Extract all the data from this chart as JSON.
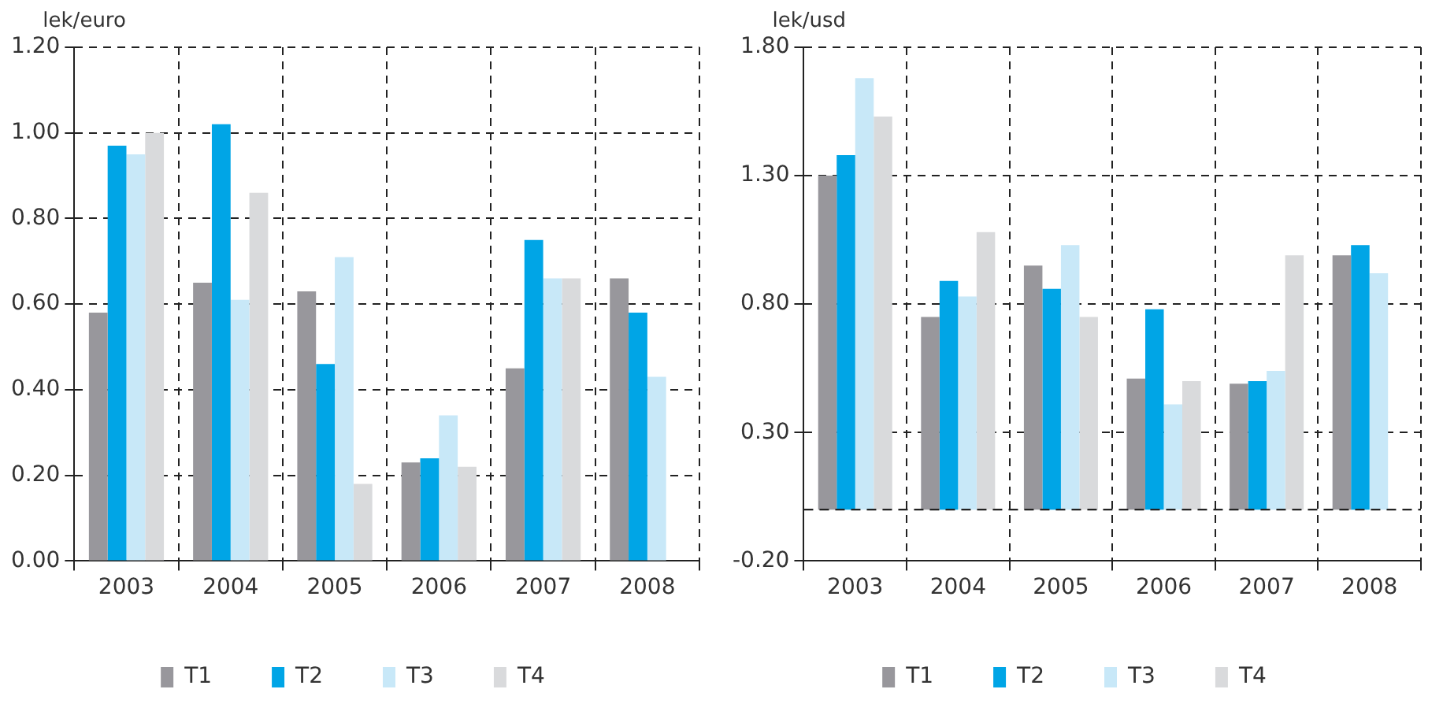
{
  "chart_data": [
    {
      "type": "bar",
      "ylabel": "lek/euro",
      "categories": [
        "2003",
        "2004",
        "2005",
        "2006",
        "2007",
        "2008"
      ],
      "series": [
        {
          "name": "T1",
          "color": "#98979c",
          "values": [
            0.58,
            0.65,
            0.63,
            0.23,
            0.45,
            0.66
          ]
        },
        {
          "name": "T2",
          "color": "#00a5e6",
          "values": [
            0.97,
            1.02,
            0.46,
            0.24,
            0.75,
            0.58
          ]
        },
        {
          "name": "T3",
          "color": "#c8e8f8",
          "values": [
            0.95,
            0.61,
            0.71,
            0.34,
            0.66,
            0.43
          ]
        },
        {
          "name": "T4",
          "color": "#d9dadc",
          "values": [
            1.0,
            0.86,
            0.18,
            0.22,
            0.66,
            null
          ]
        }
      ],
      "ylim": [
        0,
        1.2
      ],
      "yticks": [
        {
          "value": 0,
          "label": "0.00"
        },
        {
          "value": 0.2,
          "label": "0.20"
        },
        {
          "value": 0.4,
          "label": "0.40"
        },
        {
          "value": 0.6,
          "label": "0.60"
        },
        {
          "value": 0.8,
          "label": "0.80"
        },
        {
          "value": 1.0,
          "label": "1.00"
        },
        {
          "value": 1.2,
          "label": "1.20"
        }
      ],
      "grid": true,
      "legend": "bottom"
    },
    {
      "type": "bar",
      "ylabel": "lek/usd",
      "categories": [
        "2003",
        "2004",
        "2005",
        "2006",
        "2007",
        "2008"
      ],
      "series": [
        {
          "name": "T1",
          "color": "#98979c",
          "values": [
            1.3,
            0.75,
            0.95,
            0.51,
            0.49,
            0.99
          ]
        },
        {
          "name": "T2",
          "color": "#00a5e6",
          "values": [
            1.38,
            0.89,
            0.86,
            0.78,
            0.5,
            1.03
          ]
        },
        {
          "name": "T3",
          "color": "#c8e8f8",
          "values": [
            1.68,
            0.83,
            1.03,
            0.41,
            0.54,
            0.92
          ]
        },
        {
          "name": "T4",
          "color": "#d9dadc",
          "values": [
            1.53,
            1.08,
            0.75,
            0.5,
            0.99,
            null
          ]
        }
      ],
      "ylim": [
        -0.2,
        1.8
      ],
      "yticks": [
        {
          "value": -0.2,
          "label": "-0.20"
        },
        {
          "value": 0.3,
          "label": "0.30"
        },
        {
          "value": 0.8,
          "label": "0.80"
        },
        {
          "value": 1.3,
          "label": "1.30"
        },
        {
          "value": 1.8,
          "label": "1.80"
        }
      ],
      "ref_lines": [
        {
          "axis": "y",
          "value": 0,
          "line_style": "dashed"
        }
      ],
      "grid": true,
      "legend": "bottom"
    }
  ]
}
